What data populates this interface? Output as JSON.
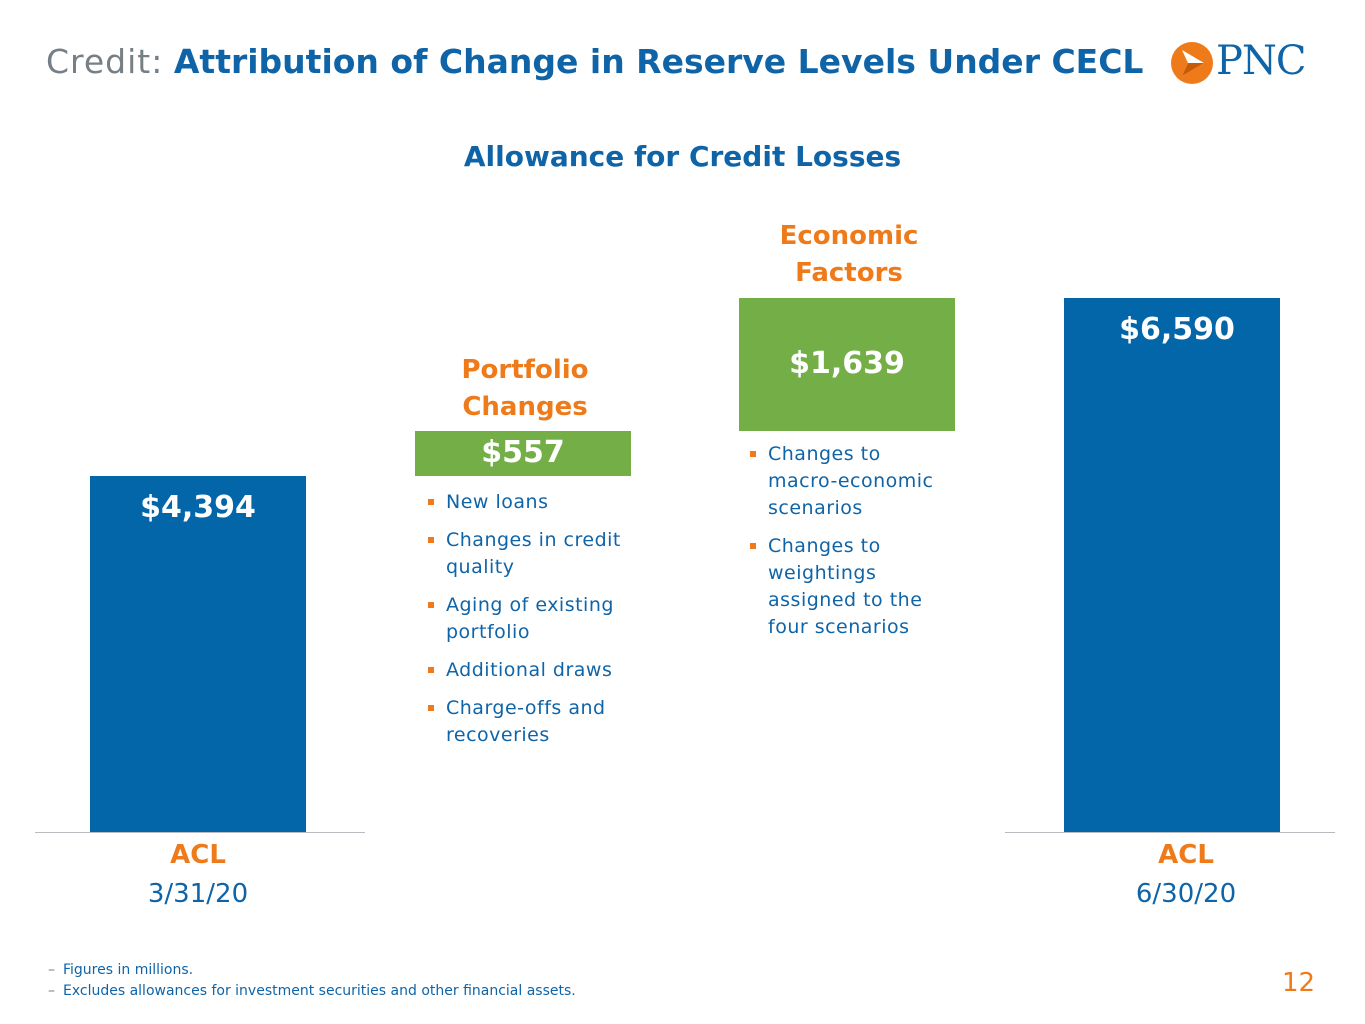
{
  "header": {
    "prefix": "Credit:",
    "title": "Attribution of Change in Reserve Levels Under CECL",
    "logo_text": "PNC"
  },
  "chart_data": {
    "type": "bar",
    "subtype": "waterfall",
    "title": "Allowance for Credit Losses",
    "unit": "$ millions",
    "categories": [
      "ACL 3/31/20",
      "Portfolio Changes",
      "Economic Factors",
      "ACL 6/30/20"
    ],
    "values": [
      4394,
      557,
      1639,
      6590
    ],
    "kinds": [
      "total",
      "increment",
      "increment",
      "total"
    ],
    "value_labels": [
      "$4,394",
      "$557",
      "$1,639",
      "$6,590"
    ],
    "ylim": [
      0,
      6590
    ],
    "colors": {
      "total": "#0266a9",
      "increment": "#73ae46",
      "accent": "#ef7a1a"
    }
  },
  "labels": {
    "portfolio_title_1": "Portfolio",
    "portfolio_title_2": "Changes",
    "economic_title_1": "Economic",
    "economic_title_2": "Factors",
    "acl_start_label": "ACL",
    "acl_start_date": "3/31/20",
    "acl_end_label": "ACL",
    "acl_end_date": "6/30/20"
  },
  "portfolio_bullets": [
    "New loans",
    "Changes in credit quality",
    "Aging of existing portfolio",
    "Additional draws",
    "Charge-offs and recoveries"
  ],
  "economic_bullets": [
    "Changes to macro-economic scenarios",
    "Changes to weightings assigned to the four scenarios"
  ],
  "footnotes": [
    "Figures in millions.",
    "Excludes allowances for investment securities and other financial assets."
  ],
  "page_number": "12"
}
